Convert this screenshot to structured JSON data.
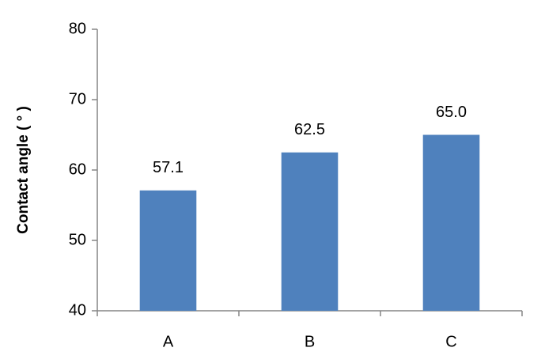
{
  "chart_data": {
    "type": "bar",
    "y_label": "Contact angle ( ° )",
    "categories": [
      "A",
      "B",
      "C"
    ],
    "values": [
      57.1,
      62.5,
      65.0
    ],
    "value_labels": [
      "57.1",
      "62.5",
      "65.0"
    ],
    "color": "#4f81bd",
    "ylim": [
      40,
      80
    ],
    "yticks": [
      40,
      50,
      60,
      70,
      80
    ],
    "grid": false
  }
}
